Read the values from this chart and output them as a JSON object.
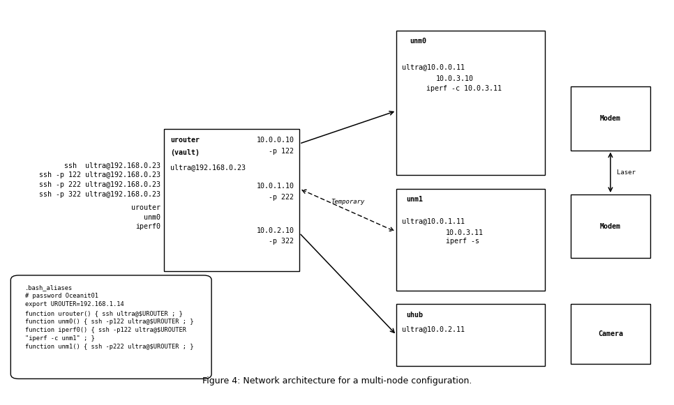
{
  "bg_color": "#ffffff",
  "fig_width": 9.66,
  "fig_height": 5.81,
  "monofont_size": 7.2,
  "title": "Figure 4: Network architecture for a multi-node configuration.",
  "title_fontsize": 9,
  "boxes": {
    "urouter": [
      0.238,
      0.305,
      0.205,
      0.37
    ],
    "unm0": [
      0.59,
      0.555,
      0.225,
      0.375
    ],
    "unm1": [
      0.59,
      0.255,
      0.225,
      0.265
    ],
    "uhub": [
      0.59,
      0.06,
      0.225,
      0.16
    ],
    "modem1": [
      0.854,
      0.62,
      0.12,
      0.165
    ],
    "modem2": [
      0.854,
      0.34,
      0.12,
      0.165
    ],
    "camera": [
      0.854,
      0.065,
      0.12,
      0.155
    ],
    "bash": [
      0.018,
      0.038,
      0.28,
      0.245
    ]
  }
}
